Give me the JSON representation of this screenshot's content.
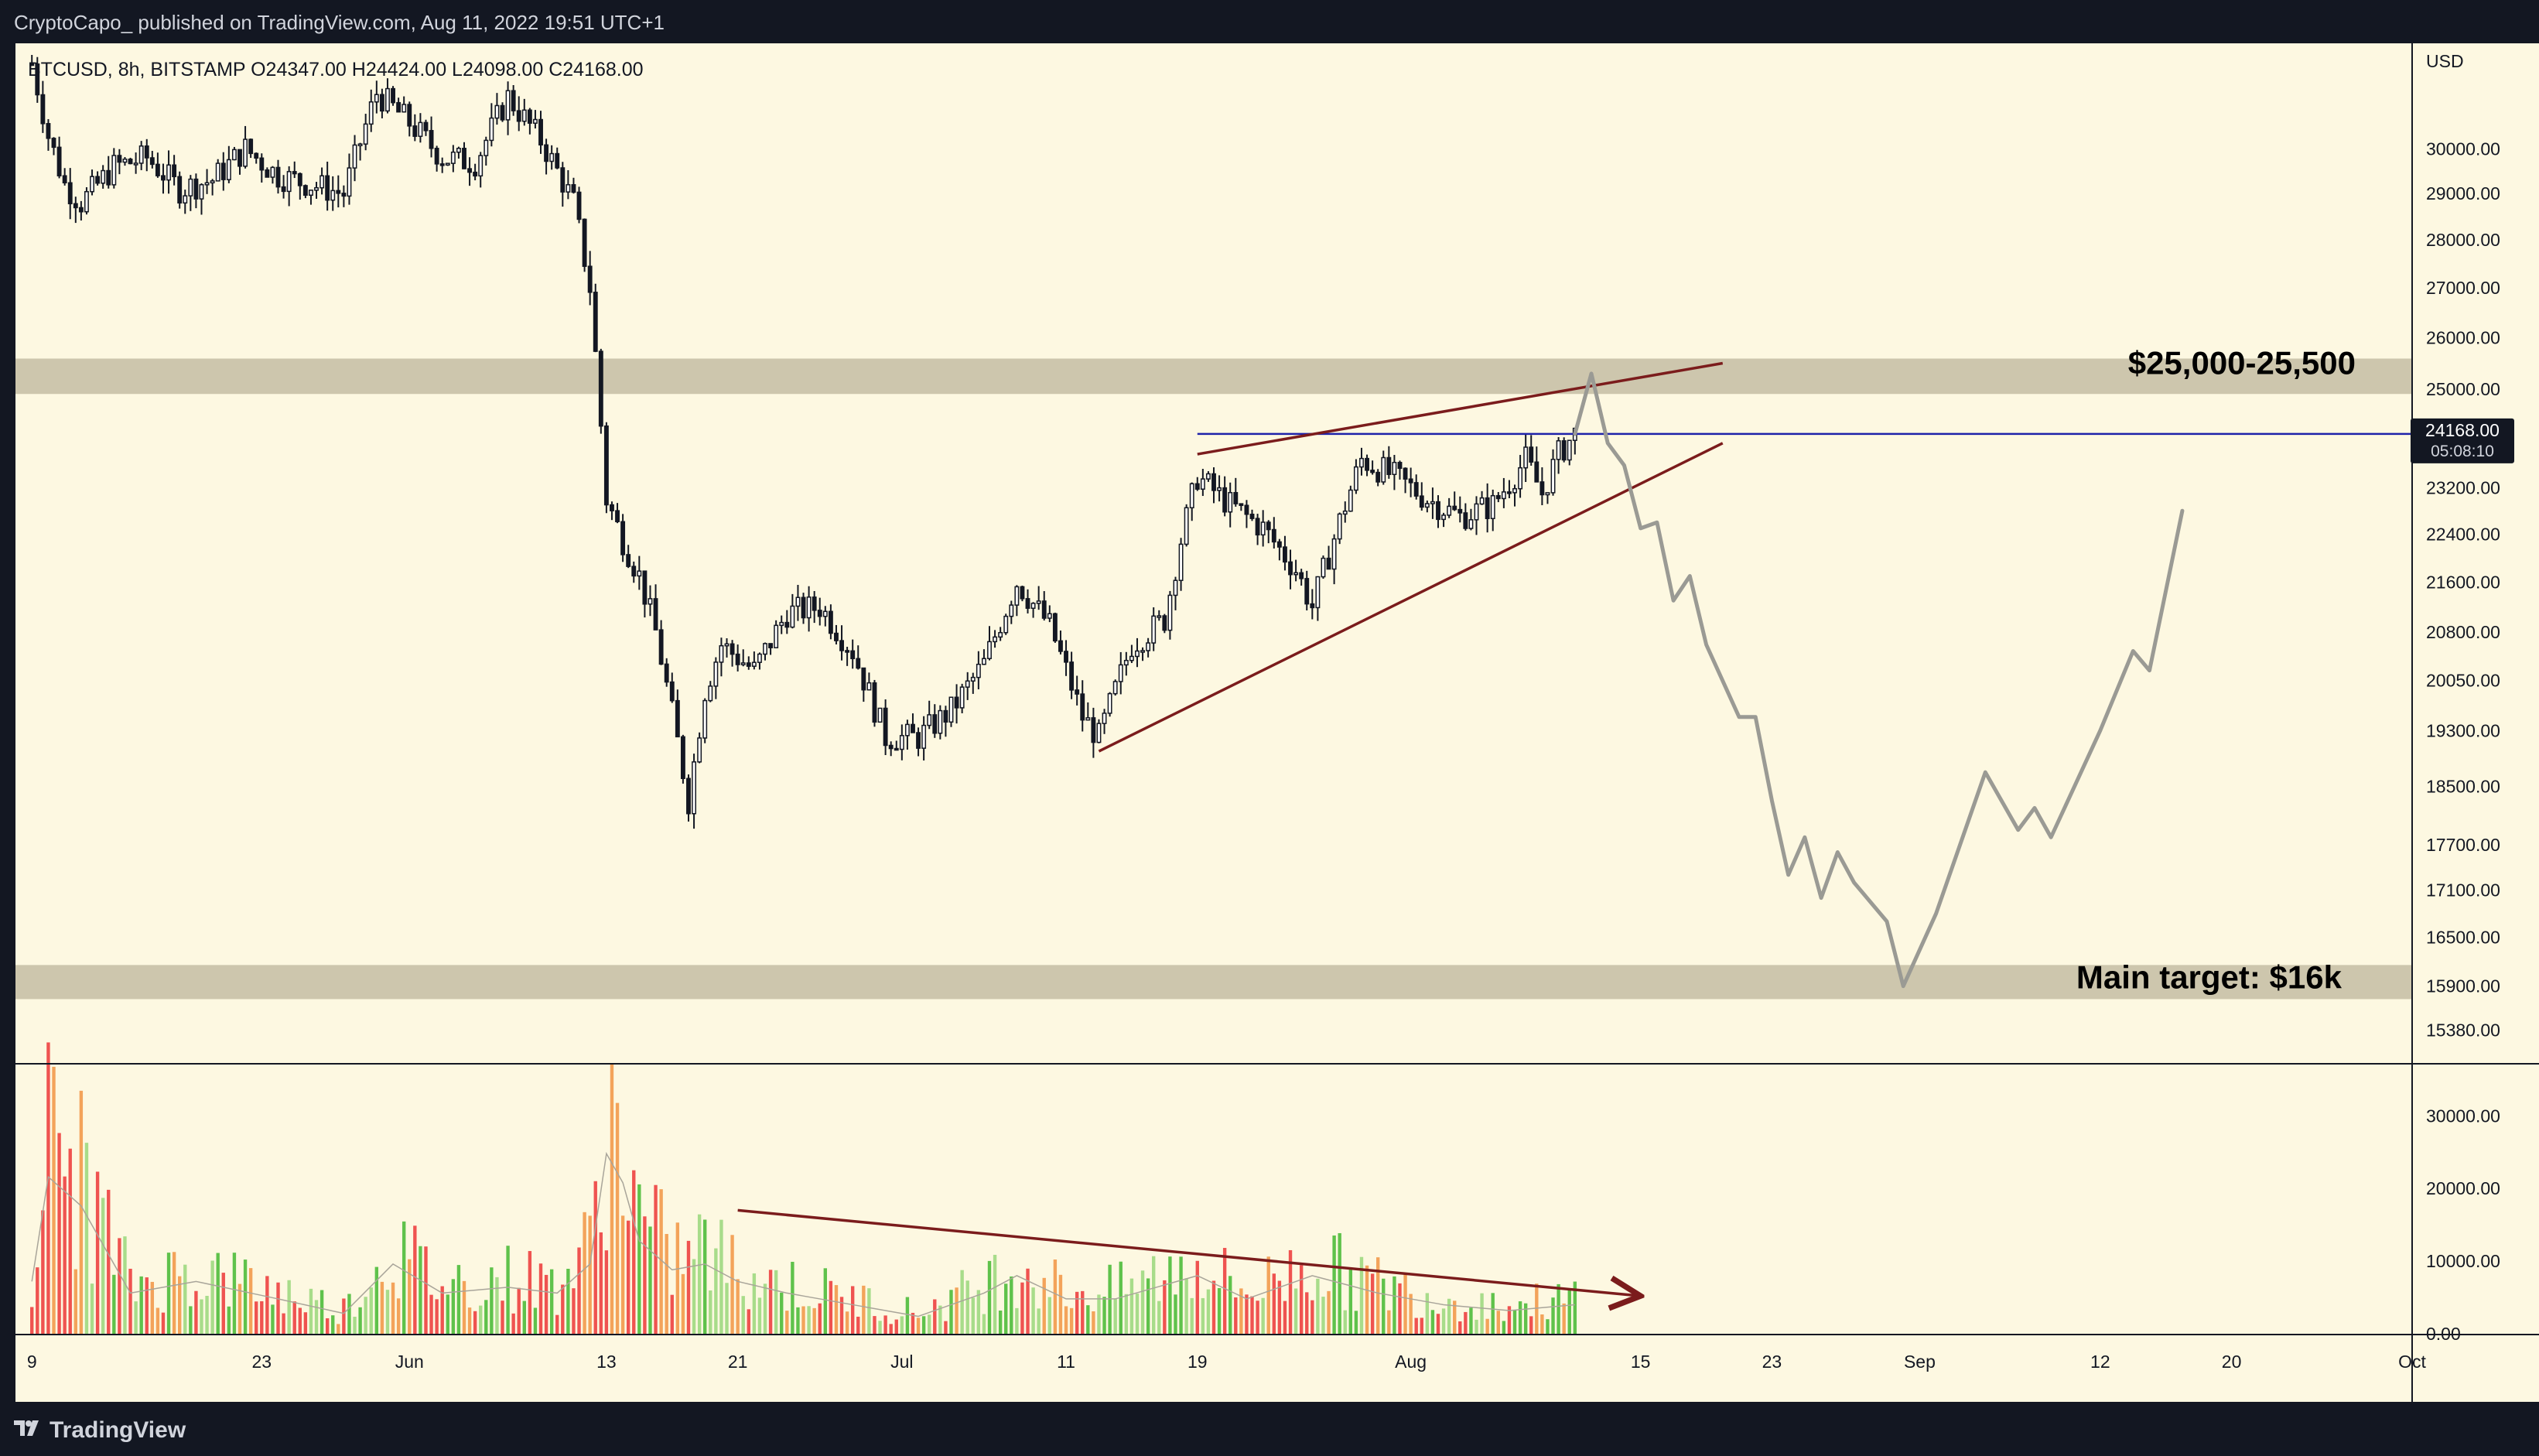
{
  "header": {
    "published_text": "CryptoCapo_ published on TradingView.com, Aug 11, 2022 19:51 UTC+1"
  },
  "legend": {
    "symbol": "BTCUSD",
    "interval": "8h",
    "exchange": "BITSTAMP",
    "open": "O24347.00",
    "high": "H24424.00",
    "low": "L24098.00",
    "close": "C24168.00"
  },
  "footer": {
    "brand": "TradingView",
    "logo_icon": "tradingview-logo-icon"
  },
  "colors": {
    "background": "#fdf8e1",
    "up": "#ffffff",
    "down": "#131722",
    "trendline": "#7b1c1c",
    "price_line": "#1e22aa",
    "zone": "#cdc6ad",
    "projection": "#9a9a94",
    "vol_green": "#5fc24b",
    "vol_lightgreen": "#a8dc8a",
    "vol_red": "#ef5350",
    "vol_orange": "#f3a35a"
  },
  "chart_data": {
    "type": "candlestick",
    "symbol": "BTCUSD",
    "price_axis": {
      "unit_label": "USD",
      "scale": "log",
      "ticks": [
        "30000.00",
        "29000.00",
        "28000.00",
        "27000.00",
        "26000.00",
        "25000.00",
        "23200.00",
        "22400.00",
        "21600.00",
        "20800.00",
        "20050.00",
        "19300.00",
        "18500.00",
        "17700.00",
        "17100.00",
        "16500.00",
        "15900.00",
        "15380.00"
      ],
      "range": [
        15000,
        32500
      ]
    },
    "last_price": {
      "value": 24168,
      "label": "24168.00",
      "countdown": "05:08:10"
    },
    "time_axis": {
      "labels": [
        {
          "text": "9",
          "date": "2022-05-09"
        },
        {
          "text": "23",
          "date": "2022-05-23"
        },
        {
          "text": "Jun",
          "date": "2022-06-01"
        },
        {
          "text": "13",
          "date": "2022-06-13"
        },
        {
          "text": "21",
          "date": "2022-06-21"
        },
        {
          "text": "Jul",
          "date": "2022-07-01"
        },
        {
          "text": "11",
          "date": "2022-07-11"
        },
        {
          "text": "19",
          "date": "2022-07-19"
        },
        {
          "text": "Aug",
          "date": "2022-08-01"
        },
        {
          "text": "15",
          "date": "2022-08-15"
        },
        {
          "text": "23",
          "date": "2022-08-23"
        },
        {
          "text": "Sep",
          "date": "2022-09-01"
        },
        {
          "text": "12",
          "date": "2022-09-12"
        },
        {
          "text": "20",
          "date": "2022-09-20"
        },
        {
          "text": "Oct",
          "date": "2022-10-01"
        }
      ],
      "range": [
        "2022-05-08",
        "2022-10-01"
      ]
    },
    "price_path": [
      [
        "2022-05-09",
        32000
      ],
      [
        "2022-05-10",
        30300
      ],
      [
        "2022-05-11",
        29200
      ],
      [
        "2022-05-12",
        28800
      ],
      [
        "2022-05-14",
        29600
      ],
      [
        "2022-05-16",
        29800
      ],
      [
        "2022-05-18",
        29100
      ],
      [
        "2022-05-20",
        29300
      ],
      [
        "2022-05-22",
        30000
      ],
      [
        "2022-05-24",
        29400
      ],
      [
        "2022-05-26",
        29200
      ],
      [
        "2022-05-28",
        29000
      ],
      [
        "2022-05-30",
        31300
      ],
      [
        "2022-06-01",
        30600
      ],
      [
        "2022-06-03",
        29800
      ],
      [
        "2022-06-05",
        29700
      ],
      [
        "2022-06-07",
        31200
      ],
      [
        "2022-06-09",
        30200
      ],
      [
        "2022-06-11",
        28800
      ],
      [
        "2022-06-12",
        27000
      ],
      [
        "2022-06-13",
        23000
      ],
      [
        "2022-06-14",
        22300
      ],
      [
        "2022-06-15",
        21700
      ],
      [
        "2022-06-16",
        20800
      ],
      [
        "2022-06-18",
        18300
      ],
      [
        "2022-06-19",
        19900
      ],
      [
        "2022-06-20",
        20600
      ],
      [
        "2022-06-22",
        20200
      ],
      [
        "2022-06-24",
        21100
      ],
      [
        "2022-06-26",
        21200
      ],
      [
        "2022-06-28",
        20500
      ],
      [
        "2022-06-30",
        19200
      ],
      [
        "2022-07-02",
        19200
      ],
      [
        "2022-07-04",
        19600
      ],
      [
        "2022-07-06",
        20300
      ],
      [
        "2022-07-08",
        21600
      ],
      [
        "2022-07-10",
        20900
      ],
      [
        "2022-07-12",
        19500
      ],
      [
        "2022-07-13",
        19200
      ],
      [
        "2022-07-15",
        20600
      ],
      [
        "2022-07-17",
        21000
      ],
      [
        "2022-07-18",
        22300
      ],
      [
        "2022-07-19",
        23400
      ],
      [
        "2022-07-21",
        22900
      ],
      [
        "2022-07-23",
        22500
      ],
      [
        "2022-07-25",
        21800
      ],
      [
        "2022-07-26",
        21200
      ],
      [
        "2022-07-28",
        22900
      ],
      [
        "2022-07-29",
        23700
      ],
      [
        "2022-07-31",
        23400
      ],
      [
        "2022-08-02",
        23000
      ],
      [
        "2022-08-04",
        22700
      ],
      [
        "2022-08-06",
        22900
      ],
      [
        "2022-08-08",
        23700
      ],
      [
        "2022-08-09",
        23100
      ],
      [
        "2022-08-10",
        23800
      ],
      [
        "2022-08-11",
        24168
      ]
    ],
    "volume_axis": {
      "ticks": [
        "30000.00",
        "20000.00",
        "10000.00",
        "0.00"
      ],
      "range": [
        0,
        36000
      ]
    },
    "volume_path": [
      [
        "2022-05-09",
        9000
      ],
      [
        "2022-05-10",
        27000
      ],
      [
        "2022-05-12",
        22000
      ],
      [
        "2022-05-15",
        7000
      ],
      [
        "2022-05-19",
        9000
      ],
      [
        "2022-05-24",
        6000
      ],
      [
        "2022-05-28",
        3500
      ],
      [
        "2022-05-31",
        12000
      ],
      [
        "2022-06-03",
        7000
      ],
      [
        "2022-06-07",
        8000
      ],
      [
        "2022-06-10",
        7000
      ],
      [
        "2022-06-12",
        12000
      ],
      [
        "2022-06-13",
        31000
      ],
      [
        "2022-06-14",
        26000
      ],
      [
        "2022-06-15",
        16000
      ],
      [
        "2022-06-17",
        11000
      ],
      [
        "2022-06-19",
        12000
      ],
      [
        "2022-06-21",
        9000
      ],
      [
        "2022-06-24",
        7000
      ],
      [
        "2022-06-28",
        5000
      ],
      [
        "2022-07-02",
        3000
      ],
      [
        "2022-07-06",
        7000
      ],
      [
        "2022-07-08",
        10000
      ],
      [
        "2022-07-11",
        6000
      ],
      [
        "2022-07-14",
        6000
      ],
      [
        "2022-07-19",
        10000
      ],
      [
        "2022-07-22",
        6000
      ],
      [
        "2022-07-26",
        10000
      ],
      [
        "2022-07-30",
        7000
      ],
      [
        "2022-08-03",
        5000
      ],
      [
        "2022-08-07",
        4000
      ],
      [
        "2022-08-11",
        5000
      ]
    ],
    "zones": [
      {
        "label": "$25,000-25,500",
        "low": 25000,
        "high": 25500
      },
      {
        "label": "Main target: $16k",
        "low": 15800,
        "high": 16100
      }
    ],
    "trendlines": [
      {
        "role": "wedge-upper",
        "points": [
          [
            "2022-07-19",
            23800
          ],
          [
            "2022-08-20",
            25500
          ]
        ]
      },
      {
        "role": "wedge-lower",
        "points": [
          [
            "2022-07-13",
            19000
          ],
          [
            "2022-08-20",
            24000
          ]
        ]
      },
      {
        "role": "volume-decline",
        "points": [
          [
            "2022-06-21",
            17000
          ],
          [
            "2022-08-15",
            5200
          ]
        ],
        "arrow": true
      }
    ],
    "horizontal_line": {
      "value": 24168,
      "from": "2022-07-19"
    },
    "projection": [
      [
        "2022-08-11",
        24168
      ],
      [
        "2022-08-12",
        25300
      ],
      [
        "2022-08-13",
        24000
      ],
      [
        "2022-08-14",
        23600
      ],
      [
        "2022-08-15",
        22500
      ],
      [
        "2022-08-16",
        22600
      ],
      [
        "2022-08-17",
        21300
      ],
      [
        "2022-08-18",
        21700
      ],
      [
        "2022-08-19",
        20600
      ],
      [
        "2022-08-21",
        19500
      ],
      [
        "2022-08-22",
        19500
      ],
      [
        "2022-08-23",
        18300
      ],
      [
        "2022-08-24",
        17300
      ],
      [
        "2022-08-25",
        17800
      ],
      [
        "2022-08-26",
        17000
      ],
      [
        "2022-08-27",
        17600
      ],
      [
        "2022-08-28",
        17200
      ],
      [
        "2022-08-30",
        16700
      ],
      [
        "2022-08-31",
        15900
      ],
      [
        "2022-09-02",
        16800
      ],
      [
        "2022-09-05",
        18700
      ],
      [
        "2022-09-07",
        17900
      ],
      [
        "2022-09-08",
        18200
      ],
      [
        "2022-09-09",
        17800
      ],
      [
        "2022-09-12",
        19300
      ],
      [
        "2022-09-14",
        20500
      ],
      [
        "2022-09-15",
        20200
      ],
      [
        "2022-09-17",
        22800
      ]
    ]
  }
}
